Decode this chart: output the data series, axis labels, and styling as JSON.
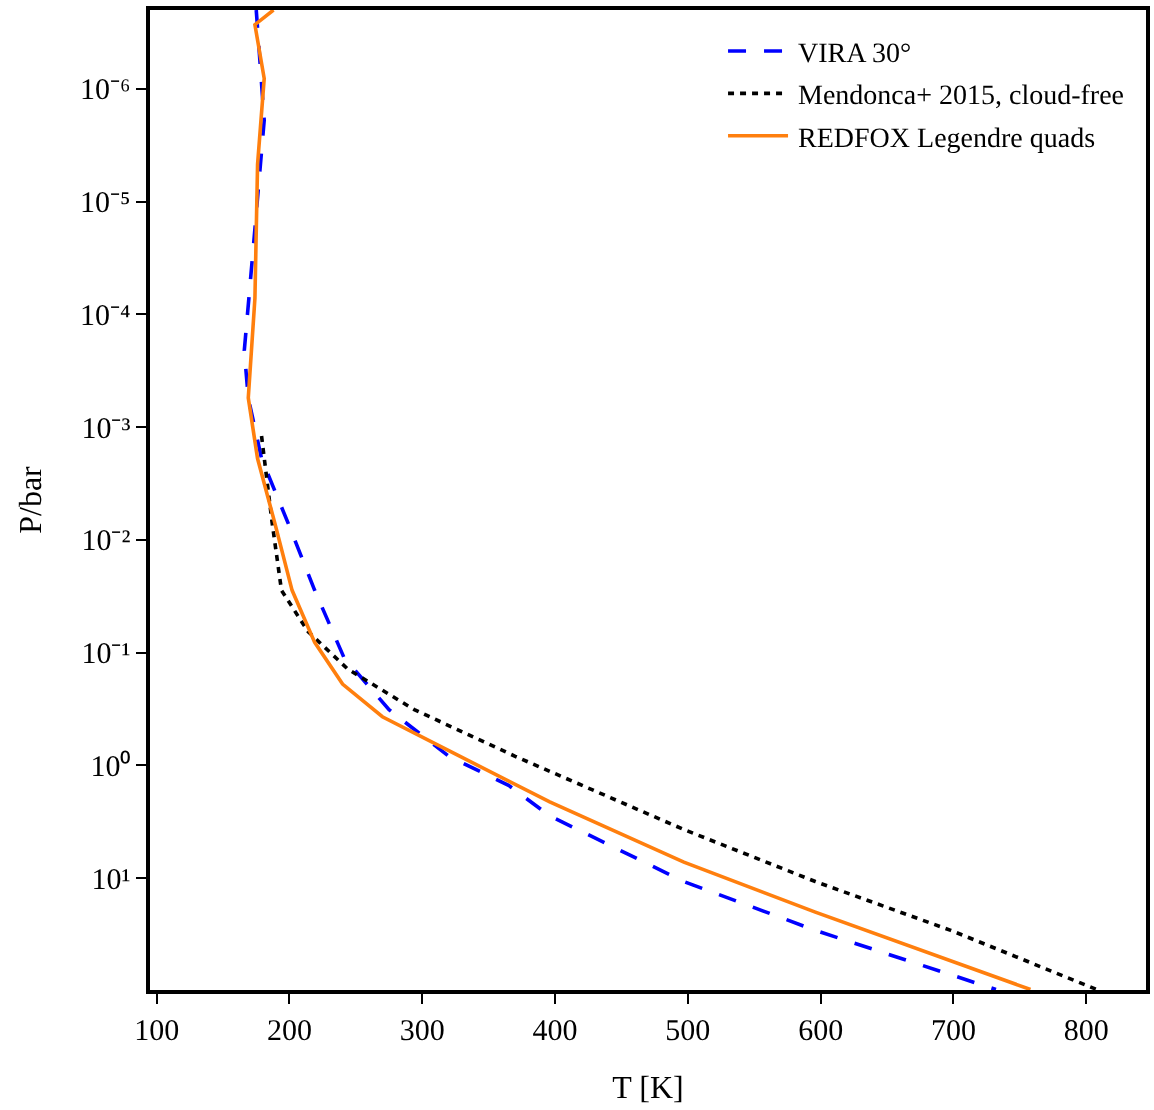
{
  "chart_data": {
    "type": "line",
    "xlabel": "T [K]",
    "ylabel": "P/bar",
    "log": "y",
    "xlim": [
      95,
      845
    ],
    "xticks": [
      100,
      200,
      300,
      400,
      500,
      600,
      700,
      800
    ],
    "ylim": [
      98,
      2e-07
    ],
    "yticks": [
      {
        "value": 1e-06,
        "label": "10⁻⁶"
      },
      {
        "value": 1e-05,
        "label": "10⁻⁵"
      },
      {
        "value": 0.0001,
        "label": "10⁻⁴"
      },
      {
        "value": 0.001,
        "label": "10⁻³"
      },
      {
        "value": 0.01,
        "label": "10⁻²"
      },
      {
        "value": 0.1,
        "label": "10⁻¹"
      },
      {
        "value": 1,
        "label": "10⁰"
      },
      {
        "value": 10,
        "label": "10¹"
      }
    ],
    "legend": "top right",
    "marker": "none",
    "series": [
      {
        "name": "VIRA 30°",
        "color": "#0000ff",
        "line_style": "dashed",
        "x": [
          175,
          181,
          173,
          166,
          169,
          179,
          199,
          219,
          241,
          275,
          320,
          365,
          396,
          497,
          596,
          732
        ],
        "values": [
          2e-07,
          1.9e-06,
          2.4e-05,
          0.00021,
          0.00055,
          0.0019,
          0.0071,
          0.028,
          0.11,
          0.32,
          0.83,
          1.5,
          2.8,
          10.7,
          29,
          97
        ]
      },
      {
        "name": "Mendonca+ 2015, cloud-free",
        "color": "#000000",
        "line_style": "dotted",
        "x": [
          179,
          187,
          194,
          214,
          244,
          294,
          370,
          497,
          596,
          698,
          808
        ],
        "values": [
          0.0012,
          0.0071,
          0.028,
          0.065,
          0.14,
          0.32,
          0.83,
          3.7,
          10.7,
          29,
          97
        ]
      },
      {
        "name": "REDFOX Legendre quads",
        "color": "#ff7f0e",
        "line_style": "solid",
        "x": [
          188,
          174,
          181,
          176,
          174,
          169,
          176,
          189,
          202,
          219,
          240,
          270,
          320,
          396,
          497,
          596,
          758
        ],
        "values": [
          2e-07,
          2.7e-07,
          8.1e-07,
          4.7e-06,
          7.2e-05,
          0.00055,
          0.0019,
          0.0071,
          0.028,
          0.081,
          0.19,
          0.37,
          0.74,
          2.1,
          7.2,
          20,
          97
        ]
      }
    ]
  }
}
